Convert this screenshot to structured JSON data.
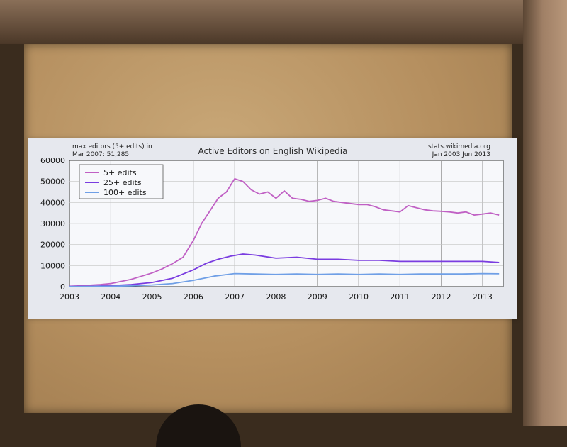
{
  "slide": {
    "note_line1": "max editors (5+ edits) in",
    "note_line2": "Mar 2007: 51,285",
    "source_line1": "stats.wikimedia.org",
    "source_line2": "Jan 2003 Jun 2013"
  },
  "chart_data": {
    "type": "line",
    "title": "Active Editors on English Wikipedia",
    "xlabel": "",
    "ylabel": "",
    "xlim": [
      2003,
      2013.5
    ],
    "ylim": [
      0,
      60000
    ],
    "x_ticks": [
      2003,
      2004,
      2005,
      2006,
      2007,
      2008,
      2009,
      2010,
      2011,
      2012,
      2013
    ],
    "y_ticks": [
      0,
      10000,
      20000,
      30000,
      40000,
      50000,
      60000
    ],
    "grid": true,
    "legend_position": "top-left",
    "series": [
      {
        "name": "5+ edits",
        "color": "#c060c4",
        "x": [
          2003.0,
          2003.25,
          2003.5,
          2003.75,
          2004.0,
          2004.25,
          2004.5,
          2004.75,
          2005.0,
          2005.25,
          2005.5,
          2005.75,
          2006.0,
          2006.2,
          2006.4,
          2006.6,
          2006.8,
          2007.0,
          2007.2,
          2007.4,
          2007.6,
          2007.8,
          2008.0,
          2008.2,
          2008.4,
          2008.6,
          2008.8,
          2009.0,
          2009.2,
          2009.4,
          2009.6,
          2009.8,
          2010.0,
          2010.2,
          2010.4,
          2010.6,
          2010.8,
          2011.0,
          2011.2,
          2011.4,
          2011.6,
          2011.8,
          2012.0,
          2012.2,
          2012.4,
          2012.6,
          2012.8,
          2013.0,
          2013.2,
          2013.4
        ],
        "values": [
          200,
          400,
          700,
          1000,
          1500,
          2500,
          3500,
          5000,
          6500,
          8500,
          11000,
          14000,
          22000,
          30000,
          36000,
          42000,
          45000,
          51285,
          50000,
          46000,
          44000,
          45000,
          42000,
          45500,
          42000,
          41500,
          40500,
          41000,
          42000,
          40500,
          40000,
          39500,
          39000,
          39000,
          38000,
          36500,
          36000,
          35500,
          38500,
          37500,
          36500,
          36000,
          35800,
          35500,
          35000,
          35500,
          34000,
          34500,
          35000,
          34000
        ]
      },
      {
        "name": "25+ edits",
        "color": "#7a3ce0",
        "x": [
          2003.0,
          2003.5,
          2004.0,
          2004.5,
          2005.0,
          2005.5,
          2006.0,
          2006.3,
          2006.6,
          2006.9,
          2007.2,
          2007.5,
          2008.0,
          2008.5,
          2009.0,
          2009.5,
          2010.0,
          2010.5,
          2011.0,
          2011.5,
          2012.0,
          2012.5,
          2013.0,
          2013.4
        ],
        "values": [
          100,
          200,
          500,
          1000,
          2000,
          4000,
          8000,
          11000,
          13000,
          14500,
          15500,
          15000,
          13500,
          14000,
          13000,
          13000,
          12500,
          12500,
          12000,
          12000,
          12000,
          12000,
          12000,
          11500
        ]
      },
      {
        "name": "100+ edits",
        "color": "#6f9fe6",
        "x": [
          2003.0,
          2003.5,
          2004.0,
          2004.5,
          2005.0,
          2005.5,
          2006.0,
          2006.5,
          2007.0,
          2007.5,
          2008.0,
          2008.5,
          2009.0,
          2009.5,
          2010.0,
          2010.5,
          2011.0,
          2011.5,
          2012.0,
          2012.5,
          2013.0,
          2013.4
        ],
        "values": [
          50,
          100,
          200,
          400,
          800,
          1500,
          3000,
          5000,
          6200,
          6000,
          5800,
          6000,
          5800,
          6000,
          5800,
          6000,
          5800,
          6000,
          6000,
          6000,
          6200,
          6100
        ]
      }
    ]
  }
}
